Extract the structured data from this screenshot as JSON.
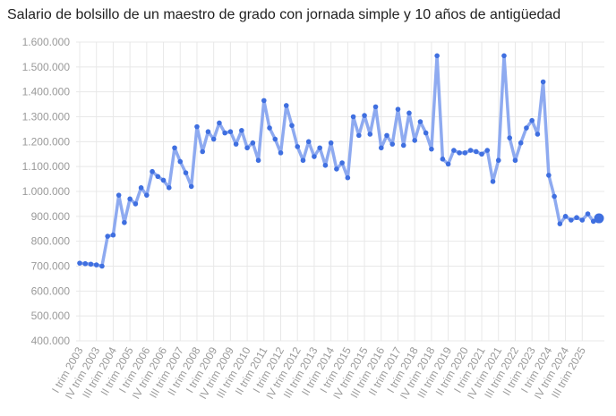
{
  "chart_data": {
    "type": "line",
    "title": "Salario de bolsillo de un maestro de grado con jornada simple y 10 años de antigüedad",
    "ylim": [
      400000,
      1600000
    ],
    "yticks": [
      "400.000",
      "500.000",
      "600.000",
      "700.000",
      "800.000",
      "900.000",
      "1.000.000",
      "1.100.000",
      "1.200.000",
      "1.300.000",
      "1.400.000",
      "1.500.000",
      "1.600.000"
    ],
    "xtick_labels": [
      "I trim 2003",
      "IV trim 2003",
      "III trim 2004",
      "II trim 2005",
      "I trim 2006",
      "IV trim 2006",
      "III trim 2007",
      "II trim 2008",
      "I trim 2009",
      "IV trim 2009",
      "III trim 2010",
      "II trim 2011",
      "I trim 2012",
      "IV trim 2012",
      "III trim 2013",
      "II trim 2014",
      "I trim 2015",
      "IV trim 2015",
      "III trim 2016",
      "II trim 2017",
      "I trim 2018",
      "IV trim 2018",
      "III trim 2019",
      "II trim 2020",
      "I trim 2021",
      "IV trim 2021",
      "III trim 2022",
      "II trim 2023",
      "I trim 2024",
      "IV trim 2024",
      "III trim 2025"
    ],
    "grid": true,
    "line_color": "#8eaaf0",
    "point_color": "#3f6fe0",
    "series": [
      {
        "values": [
          712000,
          710000,
          708000,
          705000,
          700000,
          820000,
          825000,
          985000,
          875000,
          970000,
          950000,
          1015000,
          985000,
          1080000,
          1060000,
          1045000,
          1015000,
          1175000,
          1120000,
          1075000,
          1020000,
          1260000,
          1160000,
          1240000,
          1210000,
          1275000,
          1235000,
          1240000,
          1190000,
          1245000,
          1175000,
          1195000,
          1125000,
          1365000,
          1255000,
          1210000,
          1155000,
          1345000,
          1265000,
          1180000,
          1125000,
          1200000,
          1140000,
          1175000,
          1105000,
          1195000,
          1090000,
          1115000,
          1055000,
          1300000,
          1225000,
          1305000,
          1230000,
          1340000,
          1175000,
          1225000,
          1190000,
          1330000,
          1185000,
          1315000,
          1205000,
          1280000,
          1235000,
          1170000,
          1545000,
          1130000,
          1110000,
          1165000,
          1155000,
          1155000,
          1165000,
          1160000,
          1150000,
          1165000,
          1040000,
          1125000,
          1545000,
          1215000,
          1125000,
          1195000,
          1255000,
          1285000,
          1230000,
          1440000,
          1065000,
          980000,
          870000,
          900000,
          885000,
          895000,
          885000,
          910000,
          880000,
          892000
        ]
      }
    ]
  }
}
